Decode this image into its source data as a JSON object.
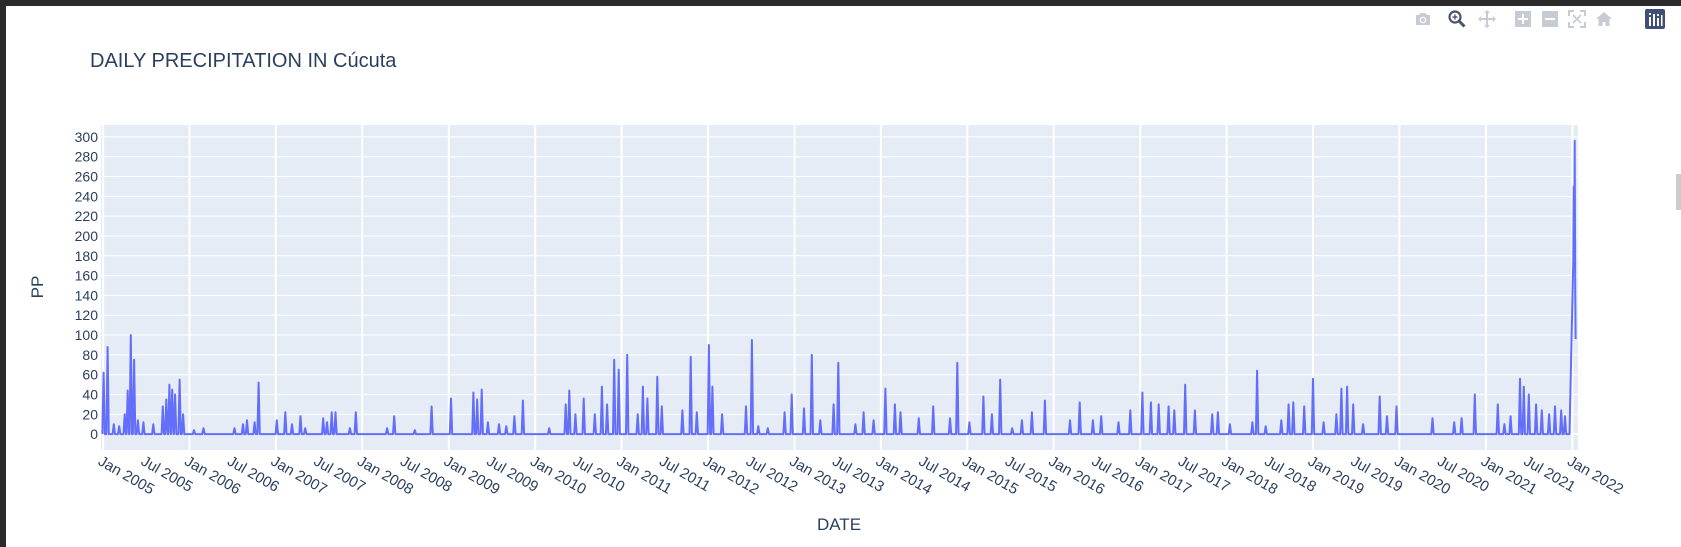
{
  "toolbar": {
    "buttons": [
      {
        "name": "camera-icon",
        "label": "Download plot as a png",
        "active": false
      },
      {
        "name": "zoom-icon",
        "label": "Zoom",
        "active": true
      },
      {
        "name": "pan-icon",
        "label": "Pan",
        "active": false
      },
      {
        "name": "zoom-in-icon",
        "label": "Zoom in",
        "active": false
      },
      {
        "name": "zoom-out-icon",
        "label": "Zoom out",
        "active": false
      },
      {
        "name": "autoscale-icon",
        "label": "Autoscale",
        "active": false
      },
      {
        "name": "home-icon",
        "label": "Reset axes",
        "active": false
      },
      {
        "name": "plotly-logo-icon",
        "label": "Produced with Plotly",
        "active": false
      }
    ]
  },
  "colors": {
    "line": "#636efa",
    "plot_bg": "#e5ecf6",
    "grid": "#ffffff",
    "text": "#2a3f5f"
  },
  "chart_data": {
    "type": "line",
    "title": "DAILY PRECIPITATION IN Cúcuta",
    "xlabel": "DATE",
    "ylabel": "PP",
    "x_range": [
      "2004-12-23",
      "2022-01-25"
    ],
    "ylim": [
      -16,
      312
    ],
    "grid": true,
    "x_ticks": [
      "Jan 2005",
      "Jul 2005",
      "Jan 2006",
      "Jul 2006",
      "Jan 2007",
      "Jul 2007",
      "Jan 2008",
      "Jul 2008",
      "Jan 2009",
      "Jul 2009",
      "Jan 2010",
      "Jul 2010",
      "Jan 2011",
      "Jul 2011",
      "Jan 2012",
      "Jul 2012",
      "Jan 2013",
      "Jul 2013",
      "Jan 2014",
      "Jul 2014",
      "Jan 2015",
      "Jul 2015",
      "Jan 2016",
      "Jul 2016",
      "Jan 2017",
      "Jul 2017",
      "Jan 2018",
      "Jul 2018",
      "Jan 2019",
      "Jul 2019",
      "Jan 2020",
      "Jul 2020",
      "Jan 2021",
      "Jul 2021",
      "Jan 2022"
    ],
    "y_ticks": [
      0,
      20,
      40,
      60,
      80,
      100,
      120,
      140,
      160,
      180,
      200,
      220,
      240,
      260,
      280,
      300
    ],
    "series": [
      {
        "peaks": [
          [
            "2005-01-03",
            62
          ],
          [
            "2005-01-20",
            88
          ],
          [
            "2005-02-15",
            10
          ],
          [
            "2005-03-10",
            8
          ],
          [
            "2005-04-02",
            20
          ],
          [
            "2005-04-15",
            44
          ],
          [
            "2005-04-28",
            100
          ],
          [
            "2005-05-12",
            75
          ],
          [
            "2005-05-28",
            14
          ],
          [
            "2005-06-20",
            12
          ],
          [
            "2005-08-01",
            10
          ],
          [
            "2005-09-10",
            28
          ],
          [
            "2005-09-25",
            35
          ],
          [
            "2005-10-08",
            50
          ],
          [
            "2005-10-20",
            45
          ],
          [
            "2005-11-01",
            40
          ],
          [
            "2005-11-20",
            55
          ],
          [
            "2005-12-05",
            20
          ],
          [
            "2006-01-20",
            4
          ],
          [
            "2006-03-01",
            6
          ],
          [
            "2006-07-10",
            6
          ],
          [
            "2006-08-15",
            10
          ],
          [
            "2006-09-01",
            14
          ],
          [
            "2006-10-03",
            12
          ],
          [
            "2006-10-20",
            52
          ],
          [
            "2007-01-05",
            14
          ],
          [
            "2007-02-10",
            22
          ],
          [
            "2007-03-10",
            10
          ],
          [
            "2007-04-15",
            18
          ],
          [
            "2007-05-05",
            6
          ],
          [
            "2007-07-20",
            16
          ],
          [
            "2007-08-05",
            12
          ],
          [
            "2007-08-25",
            22
          ],
          [
            "2007-09-10",
            22
          ],
          [
            "2007-11-10",
            6
          ],
          [
            "2007-12-05",
            22
          ],
          [
            "2008-04-15",
            6
          ],
          [
            "2008-05-15",
            18
          ],
          [
            "2008-08-10",
            4
          ],
          [
            "2008-10-20",
            28
          ],
          [
            "2009-01-10",
            36
          ],
          [
            "2009-04-15",
            42
          ],
          [
            "2009-05-01",
            35
          ],
          [
            "2009-05-20",
            45
          ],
          [
            "2009-06-15",
            12
          ],
          [
            "2009-08-01",
            10
          ],
          [
            "2009-09-01",
            8
          ],
          [
            "2009-10-05",
            18
          ],
          [
            "2009-11-10",
            34
          ],
          [
            "2010-03-01",
            6
          ],
          [
            "2010-05-10",
            30
          ],
          [
            "2010-05-25",
            44
          ],
          [
            "2010-06-20",
            20
          ],
          [
            "2010-07-25",
            36
          ],
          [
            "2010-09-10",
            20
          ],
          [
            "2010-10-10",
            48
          ],
          [
            "2010-11-01",
            30
          ],
          [
            "2010-12-01",
            75
          ],
          [
            "2010-12-20",
            65
          ],
          [
            "2011-01-25",
            80
          ],
          [
            "2011-03-10",
            20
          ],
          [
            "2011-04-01",
            48
          ],
          [
            "2011-04-20",
            36
          ],
          [
            "2011-06-01",
            58
          ],
          [
            "2011-06-20",
            28
          ],
          [
            "2011-09-15",
            24
          ],
          [
            "2011-10-20",
            78
          ],
          [
            "2011-11-15",
            22
          ],
          [
            "2012-01-05",
            90
          ],
          [
            "2012-01-20",
            48
          ],
          [
            "2012-03-01",
            20
          ],
          [
            "2012-06-10",
            28
          ],
          [
            "2012-07-05",
            95
          ],
          [
            "2012-08-01",
            8
          ],
          [
            "2012-09-10",
            6
          ],
          [
            "2012-11-20",
            22
          ],
          [
            "2012-12-20",
            40
          ],
          [
            "2013-02-10",
            26
          ],
          [
            "2013-03-15",
            80
          ],
          [
            "2013-04-20",
            14
          ],
          [
            "2013-06-15",
            30
          ],
          [
            "2013-07-05",
            72
          ],
          [
            "2013-09-15",
            10
          ],
          [
            "2013-10-20",
            22
          ],
          [
            "2013-12-01",
            14
          ],
          [
            "2014-01-20",
            46
          ],
          [
            "2014-03-01",
            30
          ],
          [
            "2014-03-25",
            22
          ],
          [
            "2014-06-10",
            16
          ],
          [
            "2014-08-10",
            28
          ],
          [
            "2014-10-20",
            16
          ],
          [
            "2014-11-20",
            72
          ],
          [
            "2015-01-10",
            12
          ],
          [
            "2015-03-10",
            38
          ],
          [
            "2015-04-15",
            20
          ],
          [
            "2015-05-20",
            55
          ],
          [
            "2015-07-10",
            6
          ],
          [
            "2015-08-20",
            14
          ],
          [
            "2015-10-01",
            22
          ],
          [
            "2015-11-25",
            34
          ],
          [
            "2016-03-10",
            14
          ],
          [
            "2016-04-20",
            32
          ],
          [
            "2016-06-15",
            14
          ],
          [
            "2016-07-20",
            18
          ],
          [
            "2016-10-01",
            12
          ],
          [
            "2016-11-20",
            24
          ],
          [
            "2017-01-10",
            42
          ],
          [
            "2017-02-15",
            32
          ],
          [
            "2017-03-20",
            30
          ],
          [
            "2017-05-01",
            28
          ],
          [
            "2017-05-25",
            24
          ],
          [
            "2017-07-10",
            50
          ],
          [
            "2017-08-20",
            24
          ],
          [
            "2017-11-01",
            20
          ],
          [
            "2017-11-25",
            22
          ],
          [
            "2018-01-15",
            10
          ],
          [
            "2018-04-20",
            12
          ],
          [
            "2018-05-10",
            64
          ],
          [
            "2018-06-15",
            8
          ],
          [
            "2018-08-20",
            14
          ],
          [
            "2018-09-20",
            30
          ],
          [
            "2018-10-10",
            32
          ],
          [
            "2018-11-25",
            28
          ],
          [
            "2019-01-01",
            56
          ],
          [
            "2019-02-15",
            12
          ],
          [
            "2019-04-10",
            20
          ],
          [
            "2019-05-01",
            46
          ],
          [
            "2019-05-25",
            48
          ],
          [
            "2019-06-20",
            30
          ],
          [
            "2019-08-01",
            10
          ],
          [
            "2019-10-10",
            38
          ],
          [
            "2019-11-10",
            18
          ],
          [
            "2019-12-20",
            28
          ],
          [
            "2020-05-20",
            16
          ],
          [
            "2020-08-20",
            12
          ],
          [
            "2020-09-20",
            16
          ],
          [
            "2020-11-15",
            40
          ],
          [
            "2021-02-20",
            30
          ],
          [
            "2021-03-20",
            10
          ],
          [
            "2021-04-15",
            18
          ],
          [
            "2021-05-25",
            56
          ],
          [
            "2021-06-10",
            48
          ],
          [
            "2021-07-01",
            40
          ],
          [
            "2021-08-01",
            30
          ],
          [
            "2021-08-25",
            24
          ],
          [
            "2021-09-25",
            20
          ],
          [
            "2021-10-20",
            28
          ],
          [
            "2021-11-15",
            24
          ],
          [
            "2021-12-01",
            18
          ],
          [
            "2021-12-20",
            0
          ],
          [
            "2022-01-01",
            130
          ],
          [
            "2022-01-05",
            175
          ],
          [
            "2022-01-07",
            250
          ],
          [
            "2022-01-09",
            172
          ],
          [
            "2022-01-11",
            296
          ],
          [
            "2022-01-13",
            150
          ],
          [
            "2022-01-15",
            96
          ]
        ]
      }
    ]
  }
}
